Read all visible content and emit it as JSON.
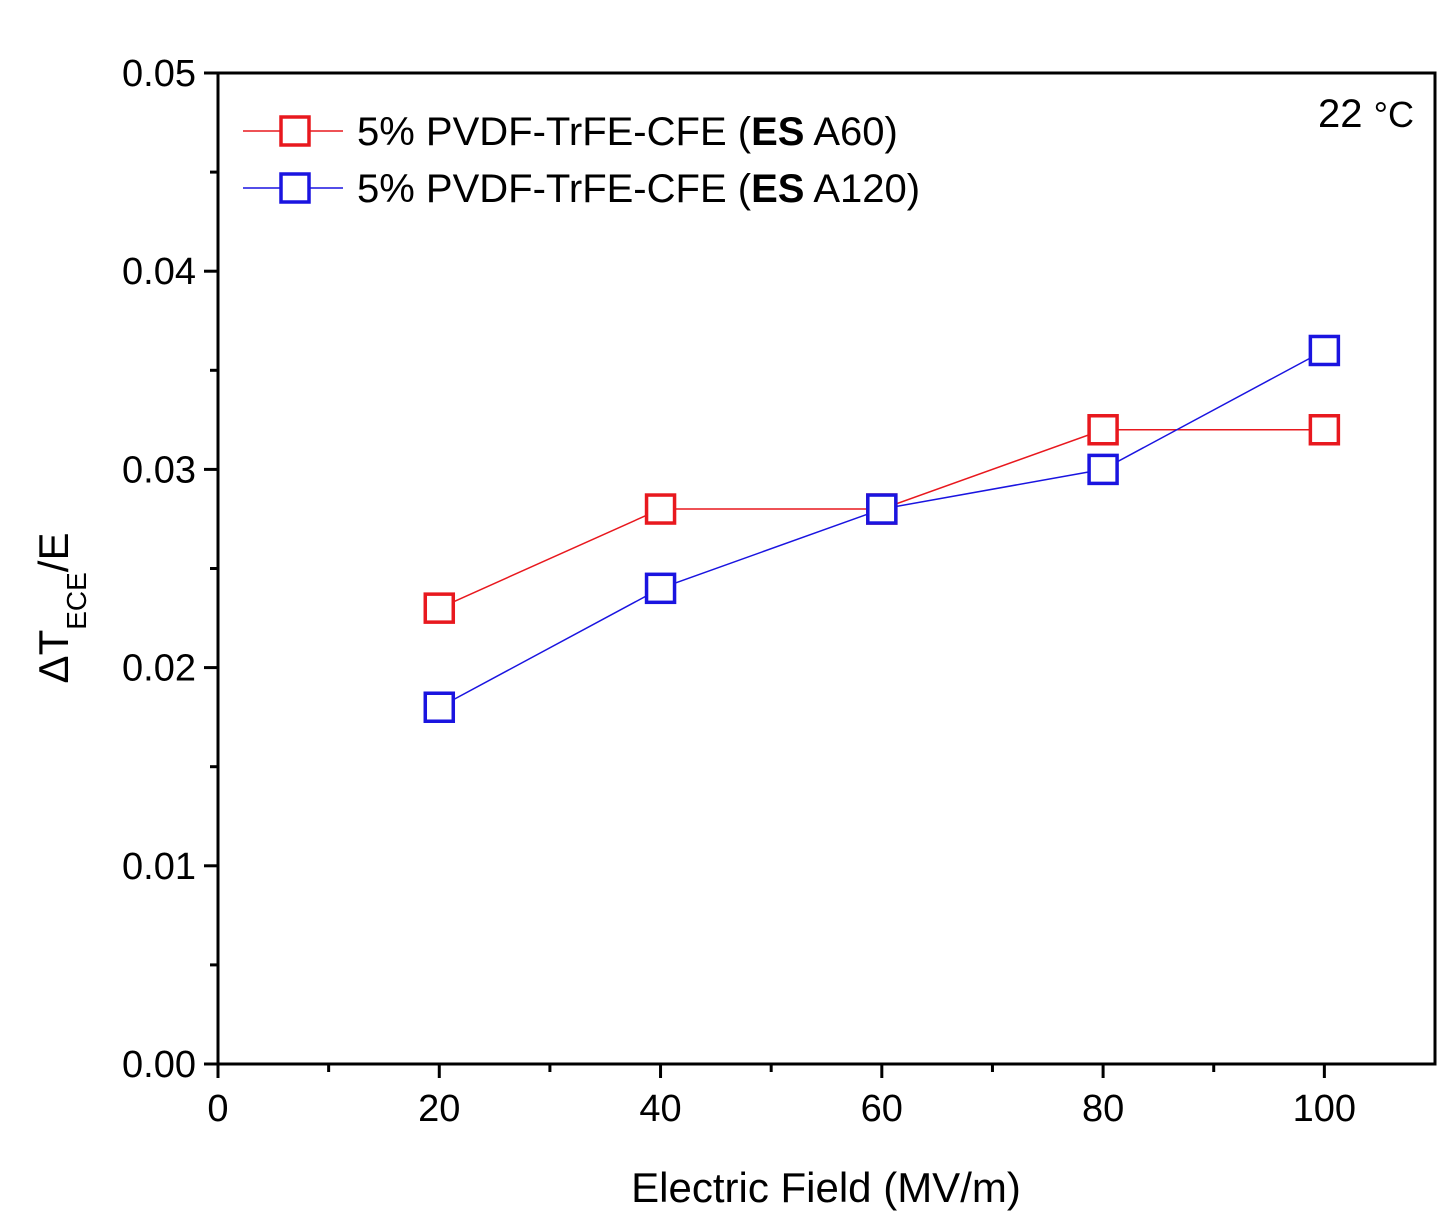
{
  "chart_data": {
    "type": "line",
    "title": "",
    "annotation": {
      "value": "22",
      "unit": "°C"
    },
    "xlabel": "Electric Field (MV/m)",
    "ylabel": {
      "prefix": "ΔT",
      "subscript": "ECE",
      "suffix": "/E"
    },
    "xlim": [
      0,
      110
    ],
    "ylim": [
      0,
      0.05
    ],
    "x_major_ticks": [
      0,
      20,
      40,
      60,
      80,
      100
    ],
    "x_tick_labels": [
      "0",
      "20",
      "40",
      "60",
      "80",
      "100"
    ],
    "x_minor_ticks": [
      10,
      30,
      50,
      70,
      90
    ],
    "y_major_ticks": [
      0,
      0.01,
      0.02,
      0.03,
      0.04,
      0.05
    ],
    "y_tick_labels": [
      "0.00",
      "0.01",
      "0.02",
      "0.03",
      "0.04",
      "0.05"
    ],
    "y_minor_ticks": [
      0.005,
      0.015,
      0.025,
      0.035,
      0.045
    ],
    "grid": false,
    "legend_position": "top-left",
    "series": [
      {
        "name_prefix": "5% PVDF-TrFE-CFE (",
        "name_bold": "ES",
        "name_suffix": " A60)",
        "color": "#e8181e",
        "marker": "open-square",
        "x": [
          20,
          40,
          60,
          80,
          100
        ],
        "values": [
          0.023,
          0.028,
          0.028,
          0.032,
          0.032
        ]
      },
      {
        "name_prefix": "5% PVDF-TrFE-CFE (",
        "name_bold": "ES",
        "name_suffix": " A120)",
        "color": "#1a14e0",
        "marker": "open-square",
        "x": [
          20,
          40,
          60,
          80,
          100
        ],
        "values": [
          0.018,
          0.024,
          0.028,
          0.03,
          0.036
        ]
      }
    ]
  }
}
